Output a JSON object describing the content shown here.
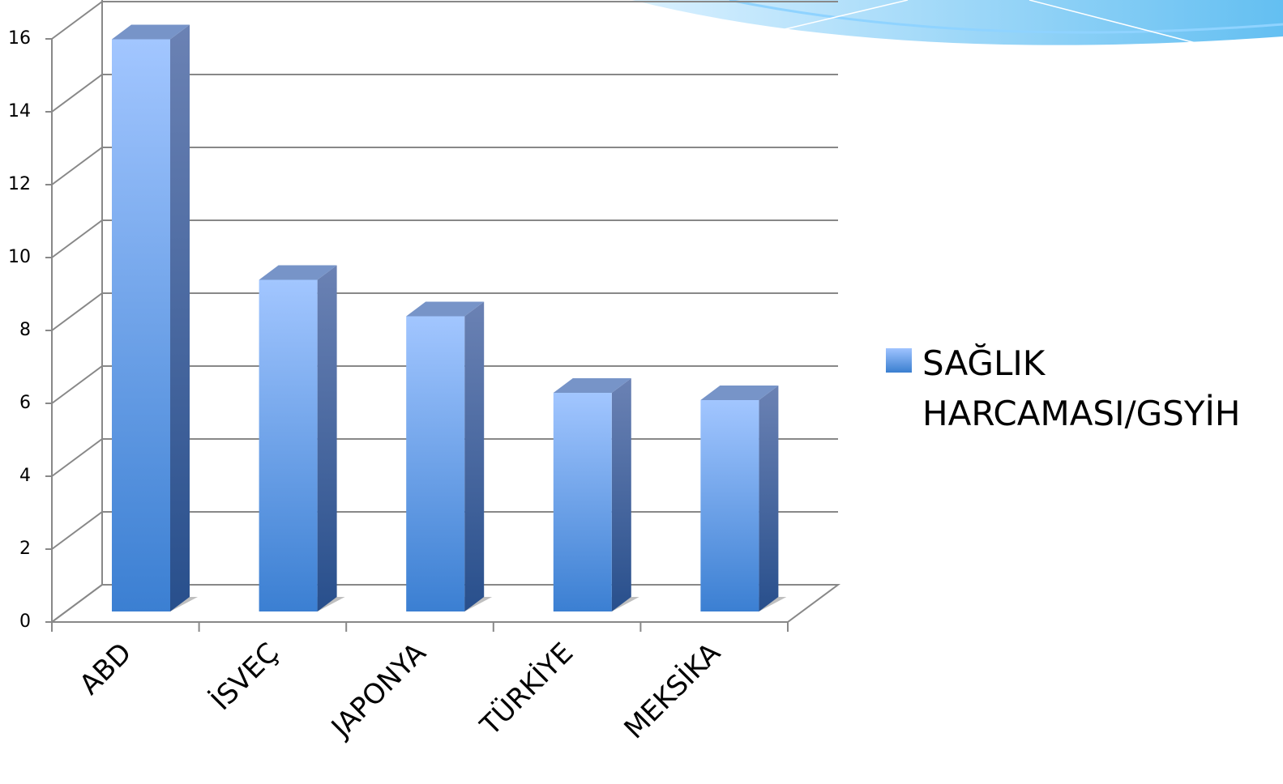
{
  "chart_data": {
    "type": "bar3d",
    "categories": [
      "ABD",
      "İSVEÇ",
      "JAPONYA",
      "TÜRKİYE",
      "MEKSİKA"
    ],
    "series": [
      {
        "name": "SAĞLIK HARCAMASI/GSYİH",
        "color": "#4a86d8",
        "values": [
          15.7,
          9.1,
          8.1,
          6.0,
          5.8
        ]
      }
    ],
    "ylim": [
      0,
      16
    ],
    "yticks": [
      0,
      2,
      4,
      6,
      8,
      10,
      12,
      14,
      16
    ],
    "grid": true,
    "legend": "right"
  }
}
